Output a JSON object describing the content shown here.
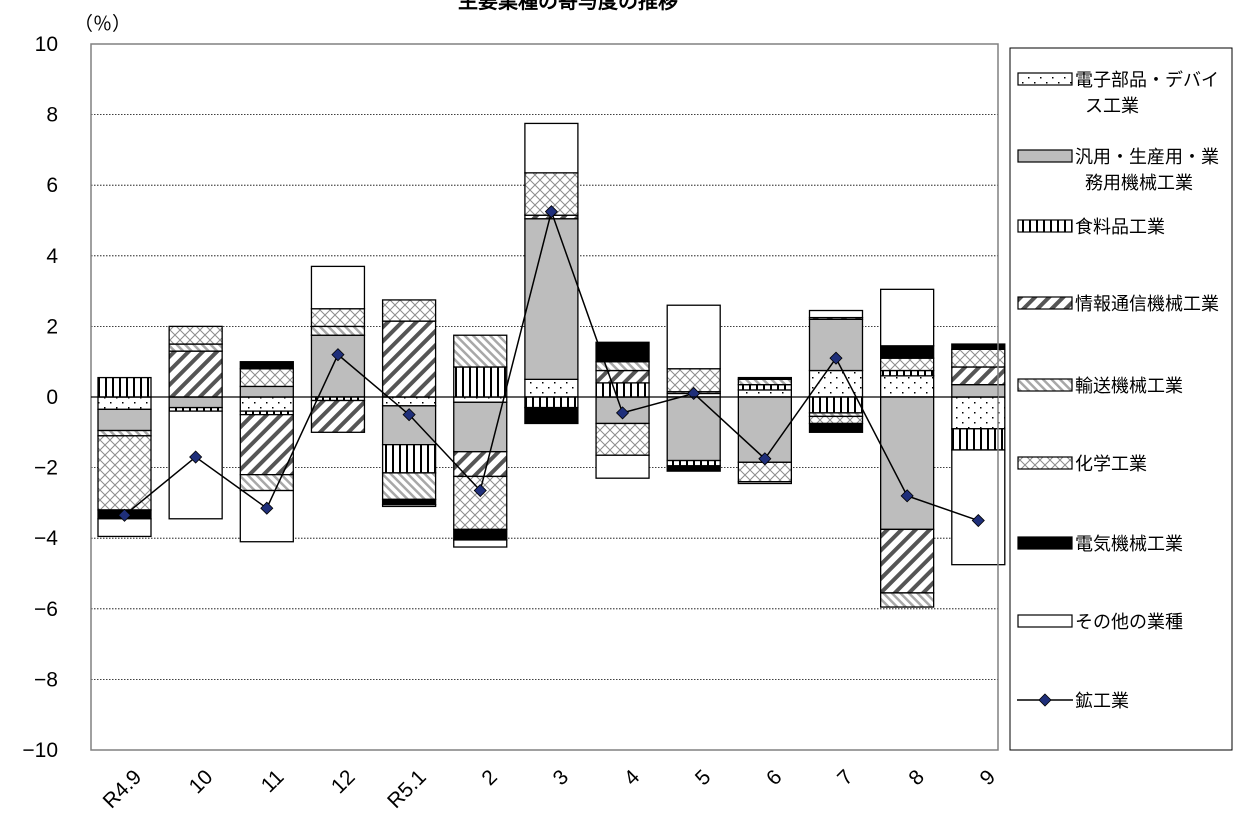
{
  "chart_data": {
    "type": "bar",
    "stacked": true,
    "title": "主要業種の寄与度の推移",
    "unit_label": "（％）",
    "ylim": [
      -10,
      10
    ],
    "yticks": [
      10,
      8,
      6,
      4,
      2,
      0,
      -2,
      -4,
      -6,
      -8,
      -10
    ],
    "ytick_labels": [
      "10",
      "8",
      "6",
      "4",
      "2",
      "0",
      "−2",
      "−4",
      "−6",
      "−8",
      "−10"
    ],
    "categories": [
      "R4.9",
      "10",
      "11",
      "12",
      "R5.1",
      "2",
      "3",
      "4",
      "5",
      "6",
      "7",
      "8",
      "9"
    ],
    "grid": true,
    "legend_position": "right",
    "series": [
      {
        "name": "電子部品・デバイス工業",
        "pattern": "dots",
        "values": [
          -0.35,
          0,
          -0.4,
          0,
          -0.25,
          -0.15,
          0.5,
          0,
          0.1,
          0.2,
          0.75,
          0.6,
          -0.9
        ]
      },
      {
        "name": "汎用・生産用・業務用機械工業",
        "pattern": "gray",
        "values": [
          -0.6,
          -0.3,
          0.3,
          1.75,
          -1.1,
          -1.4,
          4.55,
          -0.75,
          -1.8,
          -1.85,
          1.45,
          -3.75,
          0.35
        ]
      },
      {
        "name": "食料品工業",
        "pattern": "vlines",
        "values": [
          0.55,
          -0.1,
          -0.1,
          -0.1,
          -0.8,
          0.85,
          -0.3,
          0.4,
          -0.15,
          0.15,
          -0.45,
          0.15,
          -0.6
        ]
      },
      {
        "name": "情報通信機械工業",
        "pattern": "diag",
        "values": [
          0,
          1.3,
          -1.7,
          -0.9,
          2.15,
          -0.7,
          0.1,
          0.35,
          0,
          0,
          0.05,
          -1.8,
          0.5
        ]
      },
      {
        "name": "輸送機械工業",
        "pattern": "lightdiag",
        "values": [
          -0.15,
          0.2,
          -0.45,
          0.25,
          -0.75,
          0.9,
          0,
          0.25,
          0.05,
          0.15,
          -0.1,
          -0.4,
          0
        ]
      },
      {
        "name": "化学工業",
        "pattern": "crosshatch",
        "values": [
          -2.1,
          0.5,
          0.5,
          0.5,
          0.6,
          -1.5,
          1.2,
          -0.9,
          0.65,
          -0.55,
          -0.2,
          0.35,
          0.5
        ]
      },
      {
        "name": "電気機械工業",
        "pattern": "black",
        "values": [
          -0.25,
          0,
          0.2,
          0,
          -0.15,
          -0.3,
          -0.45,
          0.55,
          -0.15,
          0.05,
          -0.25,
          0.35,
          0.15
        ]
      },
      {
        "name": "その他の業種",
        "pattern": "white",
        "values": [
          -0.5,
          -3.05,
          -1.45,
          1.2,
          -0.05,
          -0.2,
          1.4,
          -0.65,
          1.8,
          -0.05,
          0.2,
          1.6,
          -3.25
        ]
      }
    ],
    "line_series": {
      "name": "鉱工業",
      "values": [
        -3.35,
        -1.7,
        -3.15,
        1.2,
        -0.5,
        -2.65,
        5.25,
        -0.45,
        0.1,
        -1.75,
        1.1,
        -2.8,
        -3.5
      ]
    }
  }
}
